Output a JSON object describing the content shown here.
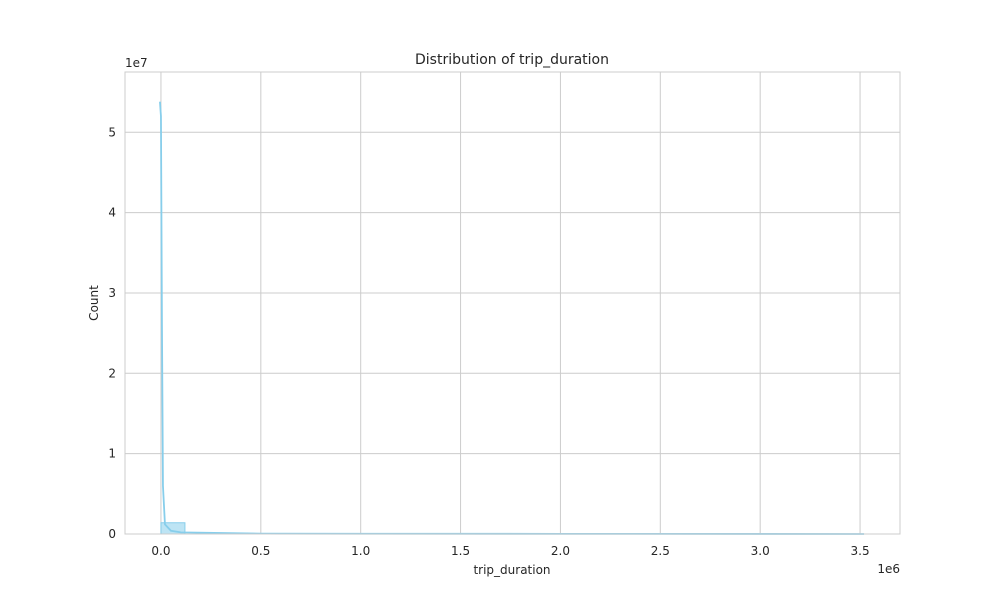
{
  "chart_data": {
    "type": "bar",
    "title": "Distribution of trip_duration",
    "xlabel": "trip_duration",
    "ylabel": "Count",
    "x_offset_label": "1e6",
    "y_offset_label": "1e7",
    "xlim": [
      -0.18,
      3.7
    ],
    "ylim": [
      0,
      5.75
    ],
    "x_ticks": [
      0.0,
      0.5,
      1.0,
      1.5,
      2.0,
      2.5,
      3.0,
      3.5
    ],
    "x_tick_labels": [
      "0.0",
      "0.5",
      "1.0",
      "1.5",
      "2.0",
      "2.5",
      "3.0",
      "3.5"
    ],
    "y_ticks": [
      0,
      1,
      2,
      3,
      4,
      5
    ],
    "y_tick_labels": [
      "0",
      "1",
      "2",
      "3",
      "4",
      "5"
    ],
    "grid": true,
    "bar_color": "#87ceeb",
    "line_color": "#87ceeb",
    "bins": [
      {
        "x0": 0.0,
        "x1": 0.12,
        "count": 0.14
      }
    ],
    "kde": {
      "x": [
        -0.005,
        0.0,
        0.005,
        0.01,
        0.02,
        0.05,
        0.1,
        0.5,
        1.0,
        2.0,
        3.0,
        3.52
      ],
      "y": [
        5.38,
        5.2,
        2.6,
        0.6,
        0.12,
        0.04,
        0.02,
        0.005,
        0.003,
        0.002,
        0.001,
        0.0
      ]
    }
  }
}
